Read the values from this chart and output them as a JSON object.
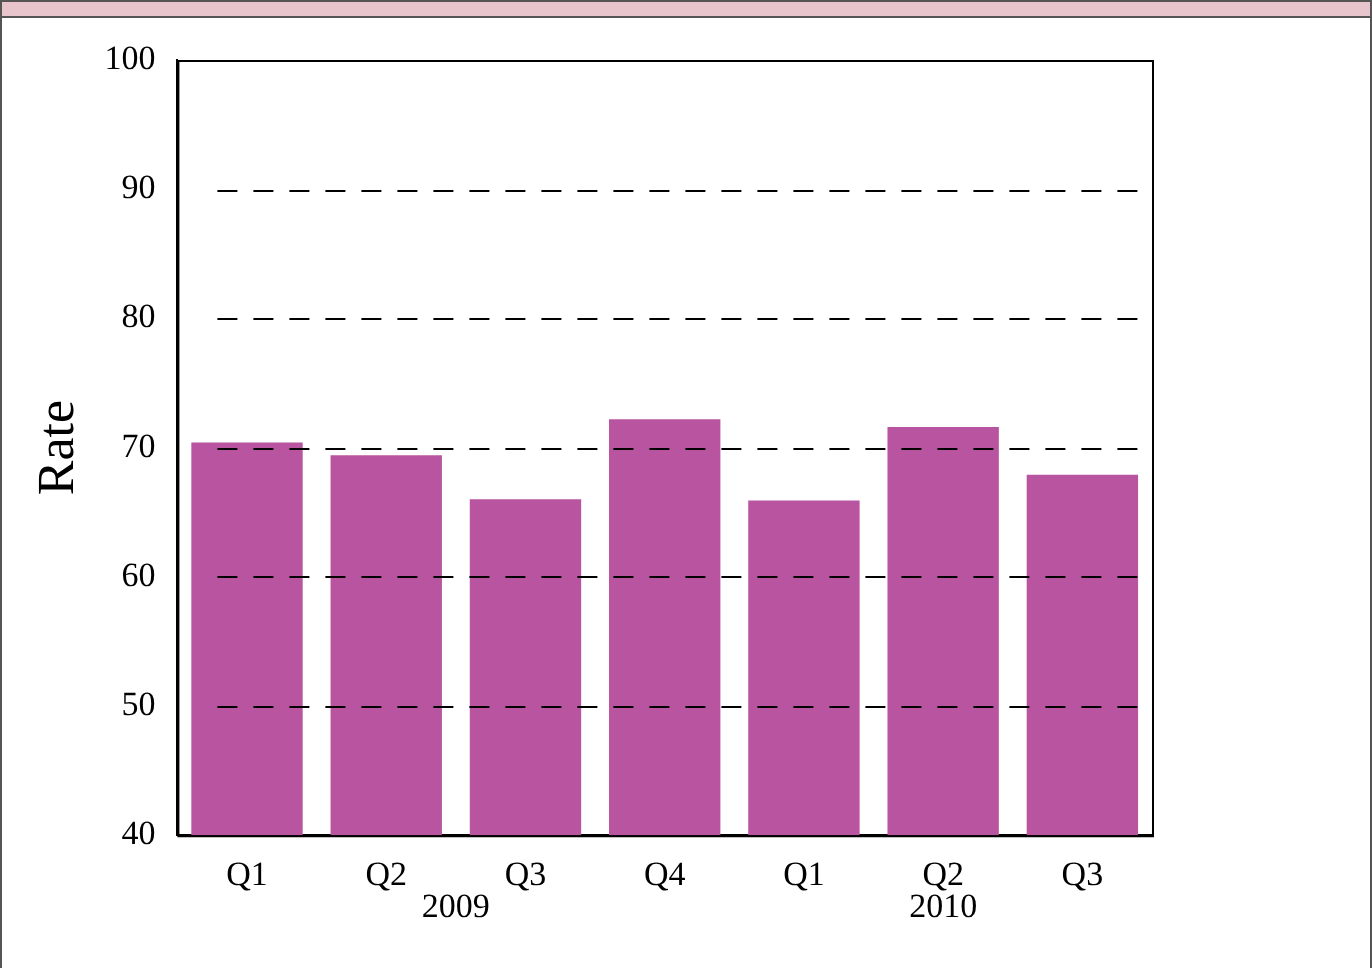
{
  "chart_data": {
    "type": "bar",
    "ylabel": "Rate",
    "categories": [
      "Q1",
      "Q2",
      "Q3",
      "Q4",
      "Q1",
      "Q2",
      "Q3"
    ],
    "values": [
      70.4,
      69.4,
      66.0,
      72.2,
      65.9,
      71.6,
      67.9
    ],
    "color": "#b954a1",
    "ylim": [
      40,
      100
    ],
    "yticks": [
      40,
      50,
      60,
      70,
      80,
      90,
      100
    ],
    "grid": "y",
    "annotations": [
      "2009",
      "2010"
    ]
  }
}
